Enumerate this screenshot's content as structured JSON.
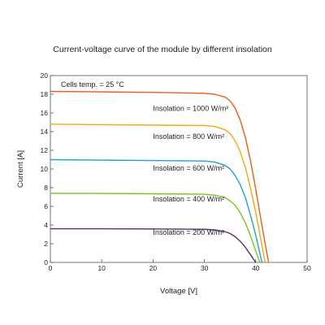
{
  "chart_data": {
    "type": "line",
    "title": "Current-voltage curve of the module by different insolation",
    "xlabel": "Voltage [V]",
    "ylabel": "Current [A]",
    "xlim": [
      0,
      50
    ],
    "ylim": [
      0,
      20
    ],
    "xticks": [
      0,
      10,
      20,
      30,
      40,
      50
    ],
    "yticks": [
      0,
      2,
      4,
      6,
      8,
      10,
      12,
      14,
      16,
      18,
      20
    ],
    "grid": false,
    "annotation": "Cells temp. = 25 °C",
    "series": [
      {
        "name": "Insolation = 1000 W/m²",
        "color": "#e8601c",
        "x": [
          0,
          10,
          20,
          30,
          32,
          34,
          35,
          36,
          37,
          38,
          39,
          40,
          41,
          42,
          42.5
        ],
        "y": [
          18.3,
          18.25,
          18.2,
          18.1,
          18.0,
          17.7,
          17.3,
          16.5,
          15.2,
          13.3,
          10.8,
          7.8,
          4.6,
          1.5,
          0
        ]
      },
      {
        "name": "Insolation = 800 W/m²",
        "color": "#f5a81a",
        "x": [
          0,
          10,
          20,
          30,
          32,
          34,
          35,
          36,
          37,
          38,
          39,
          40,
          41,
          41.8
        ],
        "y": [
          14.8,
          14.75,
          14.7,
          14.65,
          14.55,
          14.2,
          13.8,
          13.0,
          11.8,
          10.1,
          7.9,
          5.3,
          2.4,
          0
        ]
      },
      {
        "name": "Insolation = 600 W/m²",
        "color": "#1fa5c3",
        "x": [
          0,
          10,
          20,
          30,
          32,
          34,
          35,
          36,
          37,
          38,
          39,
          40,
          41.2
        ],
        "y": [
          11.0,
          10.95,
          10.9,
          10.85,
          10.75,
          10.4,
          10.0,
          9.3,
          8.3,
          6.9,
          5.0,
          2.9,
          0
        ]
      },
      {
        "name": "Insolation = 400 W/m²",
        "color": "#7cc320",
        "x": [
          0,
          10,
          20,
          30,
          32,
          34,
          35,
          36,
          37,
          38,
          39,
          40,
          40.8
        ],
        "y": [
          7.4,
          7.38,
          7.35,
          7.3,
          7.2,
          6.95,
          6.6,
          6.1,
          5.3,
          4.2,
          2.8,
          1.2,
          0
        ]
      },
      {
        "name": "Insolation = 200 W/m²",
        "color": "#5a2d6e",
        "x": [
          0,
          10,
          20,
          30,
          32,
          34,
          35,
          36,
          37,
          38,
          39,
          40
        ],
        "y": [
          3.6,
          3.6,
          3.58,
          3.55,
          3.48,
          3.3,
          3.1,
          2.75,
          2.25,
          1.6,
          0.8,
          0
        ]
      }
    ],
    "label_x": 20,
    "label_y": [
      16.5,
      13.5,
      10.1,
      6.8,
      3.2
    ]
  }
}
